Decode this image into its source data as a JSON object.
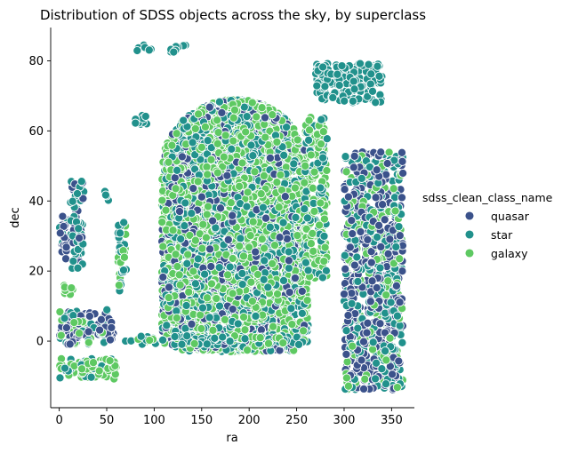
{
  "chart_data": {
    "type": "scatter",
    "title": "Distribution of SDSS objects across the sky, by superclass",
    "xlabel": "ra",
    "ylabel": "dec",
    "xlim": [
      -9,
      374
    ],
    "ylim": [
      -19,
      89.5
    ],
    "xticks": [
      0,
      50,
      100,
      150,
      200,
      250,
      300,
      350
    ],
    "yticks": [
      0,
      20,
      40,
      60,
      80
    ],
    "legend_title": "sdss_clean_class_name",
    "legend_position": "right",
    "series": [
      {
        "name": "quasar",
        "color": "#3b528b"
      },
      {
        "name": "star",
        "color": "#21918c"
      },
      {
        "name": "galaxy",
        "color": "#5ec962"
      }
    ],
    "clusters": [
      {
        "note": "main footprint",
        "ra_range": [
          108,
          262
        ],
        "dec_range": [
          -3,
          69
        ],
        "shape": "footprint",
        "density": "very high",
        "classes": [
          "galaxy",
          "star",
          "quasar"
        ]
      },
      {
        "note": "north strip",
        "ra_range": [
          81,
          97
        ],
        "dec_range": [
          82.5,
          84.5
        ],
        "classes": [
          "star"
        ]
      },
      {
        "note": "north strip",
        "ra_range": [
          115,
          137
        ],
        "dec_range": [
          82.5,
          84.5
        ],
        "classes": [
          "star"
        ]
      },
      {
        "note": "arc",
        "ra_range": [
          270,
          340
        ],
        "dec_range": [
          68,
          79.5
        ],
        "classes": [
          "star"
        ]
      },
      {
        "note": "strip",
        "ra_range": [
          0,
          10
        ],
        "dec_range": [
          23,
          36
        ],
        "classes": [
          "quasar",
          "star"
        ]
      },
      {
        "note": "strip",
        "ra_range": [
          12,
          26
        ],
        "dec_range": [
          20,
          46
        ],
        "classes": [
          "star",
          "quasar"
        ]
      },
      {
        "note": "strip",
        "ra_range": [
          0,
          18
        ],
        "dec_range": [
          13,
          16
        ],
        "classes": [
          "galaxy"
        ]
      },
      {
        "note": "strip",
        "ra_range": [
          0,
          58
        ],
        "dec_range": [
          -1,
          9
        ],
        "classes": [
          "quasar",
          "star",
          "galaxy"
        ]
      },
      {
        "note": "strip",
        "ra_range": [
          0,
          60
        ],
        "dec_range": [
          -11,
          -5
        ],
        "classes": [
          "galaxy",
          "star"
        ]
      },
      {
        "note": "strip",
        "ra_range": [
          48,
          52
        ],
        "dec_range": [
          40,
          43
        ],
        "classes": [
          "star"
        ]
      },
      {
        "note": "strip",
        "ra_range": [
          62,
          71
        ],
        "dec_range": [
          14,
          34
        ],
        "classes": [
          "star",
          "galaxy"
        ]
      },
      {
        "note": "equatorial stripe",
        "ra_range": [
          68,
          262
        ],
        "dec_range": [
          -1,
          1.5
        ],
        "classes": [
          "star",
          "galaxy"
        ]
      },
      {
        "note": "arc",
        "ra_range": [
          80,
          96
        ],
        "dec_range": [
          61,
          65
        ],
        "classes": [
          "star"
        ]
      },
      {
        "note": "arc",
        "ra_range": [
          258,
          282
        ],
        "dec_range": [
          18,
          64
        ],
        "classes": [
          "galaxy",
          "star"
        ]
      },
      {
        "note": "south-east block",
        "ra_range": [
          300,
          362
        ],
        "dec_range": [
          -14,
          54
        ],
        "classes": [
          "quasar",
          "star",
          "galaxy"
        ]
      }
    ]
  }
}
